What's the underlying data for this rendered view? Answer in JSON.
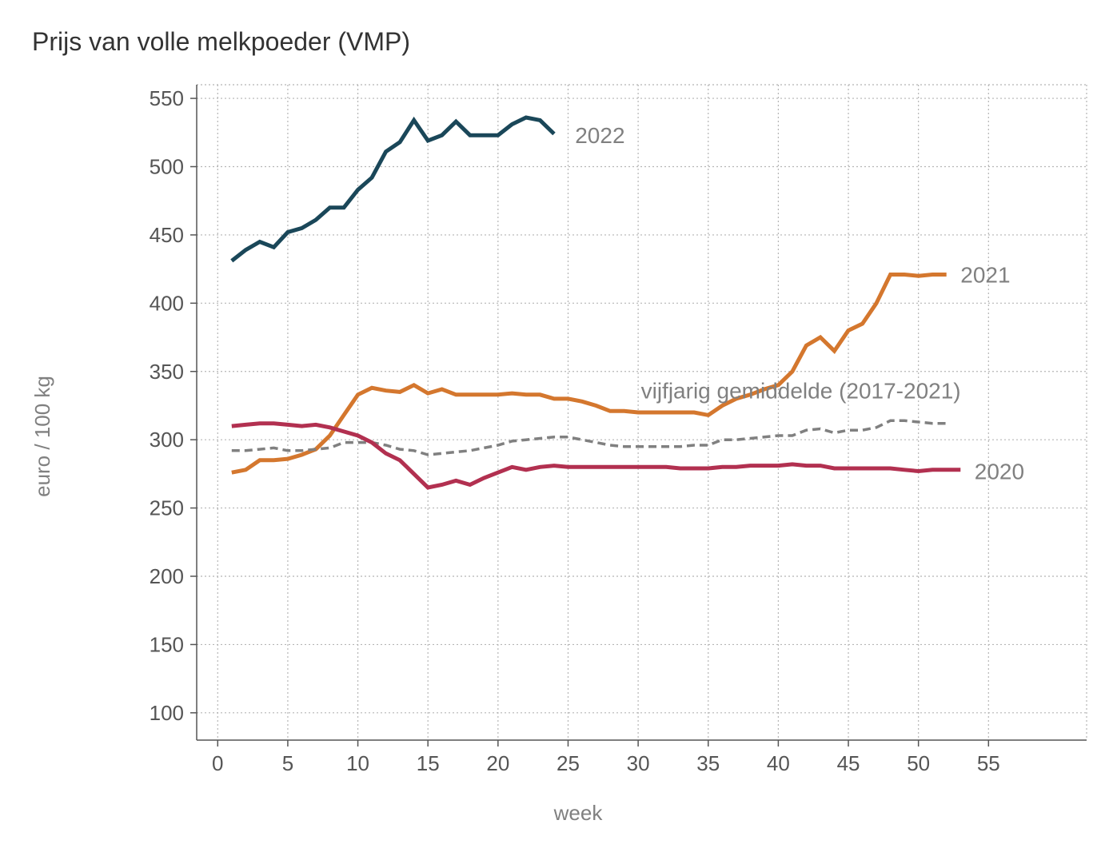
{
  "chart_data": {
    "type": "line",
    "title": "Prijs van volle melkpoeder (VMP)",
    "xlabel": "week",
    "ylabel": "euro / 100 kg",
    "xlim": [
      -1.5,
      62
    ],
    "ylim": [
      80,
      560
    ],
    "xticks": [
      0,
      5,
      10,
      15,
      20,
      25,
      30,
      35,
      40,
      45,
      50,
      55
    ],
    "yticks": [
      100,
      150,
      200,
      250,
      300,
      350,
      400,
      450,
      500,
      550
    ],
    "grid": true,
    "legend": "none",
    "series": [
      {
        "name": "2022",
        "color": "#1a4759",
        "dash": "solid",
        "label_at": [
          25.5,
          523
        ],
        "x": [
          1,
          2,
          3,
          4,
          5,
          6,
          7,
          8,
          9,
          10,
          11,
          12,
          13,
          14,
          15,
          16,
          17,
          18,
          19,
          20,
          21,
          22,
          23,
          24
        ],
        "y": [
          431,
          439,
          445,
          441,
          452,
          455,
          461,
          470,
          470,
          483,
          492,
          511,
          518,
          534,
          519,
          523,
          533,
          523,
          523,
          523,
          531,
          536,
          534,
          524
        ]
      },
      {
        "name": "2021",
        "color": "#d4772e",
        "dash": "solid",
        "label_at": [
          53,
          421
        ],
        "x": [
          1,
          2,
          3,
          4,
          5,
          6,
          7,
          8,
          9,
          10,
          11,
          12,
          13,
          14,
          15,
          16,
          17,
          18,
          19,
          20,
          21,
          22,
          23,
          24,
          25,
          26,
          27,
          28,
          29,
          30,
          31,
          32,
          33,
          34,
          35,
          36,
          37,
          38,
          39,
          40,
          41,
          42,
          43,
          44,
          45,
          46,
          47,
          48,
          49,
          50,
          51,
          52
        ],
        "y": [
          276,
          278,
          285,
          285,
          286,
          289,
          293,
          303,
          318,
          333,
          338,
          336,
          335,
          340,
          334,
          337,
          333,
          333,
          333,
          333,
          334,
          333,
          333,
          330,
          330,
          328,
          325,
          321,
          321,
          320,
          320,
          320,
          320,
          320,
          318,
          325,
          330,
          333,
          337,
          340,
          350,
          369,
          375,
          365,
          380,
          385,
          400,
          421,
          421,
          420,
          421,
          421
        ]
      },
      {
        "name": "vijfjarig gemiddelde (2017-2021)",
        "color": "#808080",
        "dash": "dashed",
        "label_at": [
          30.2,
          336
        ],
        "x": [
          1,
          2,
          3,
          4,
          5,
          6,
          7,
          8,
          9,
          10,
          11,
          12,
          13,
          14,
          15,
          16,
          17,
          18,
          19,
          20,
          21,
          22,
          23,
          24,
          25,
          26,
          27,
          28,
          29,
          30,
          31,
          32,
          33,
          34,
          35,
          36,
          37,
          38,
          39,
          40,
          41,
          42,
          43,
          44,
          45,
          46,
          47,
          48,
          49,
          50,
          51,
          52
        ],
        "y": [
          292,
          292,
          293,
          294,
          292,
          292,
          293,
          294,
          298,
          298,
          298,
          296,
          293,
          292,
          289,
          290,
          291,
          292,
          294,
          296,
          299,
          300,
          301,
          302,
          302,
          300,
          298,
          296,
          295,
          295,
          295,
          295,
          295,
          296,
          296,
          300,
          300,
          301,
          302,
          303,
          303,
          307,
          308,
          305,
          307,
          307,
          309,
          314,
          314,
          313,
          312,
          312
        ]
      },
      {
        "name": "2020",
        "color": "#b23050",
        "dash": "solid",
        "label_at": [
          54,
          277
        ],
        "x": [
          1,
          2,
          3,
          4,
          5,
          6,
          7,
          8,
          9,
          10,
          11,
          12,
          13,
          14,
          15,
          16,
          17,
          18,
          19,
          20,
          21,
          22,
          23,
          24,
          25,
          26,
          27,
          28,
          29,
          30,
          31,
          32,
          33,
          34,
          35,
          36,
          37,
          38,
          39,
          40,
          41,
          42,
          43,
          44,
          45,
          46,
          47,
          48,
          49,
          50,
          51,
          52,
          53
        ],
        "y": [
          310,
          311,
          312,
          312,
          311,
          310,
          311,
          309,
          306,
          303,
          298,
          290,
          285,
          275,
          265,
          267,
          270,
          267,
          272,
          276,
          280,
          278,
          280,
          281,
          280,
          280,
          280,
          280,
          280,
          280,
          280,
          280,
          279,
          279,
          279,
          280,
          280,
          281,
          281,
          281,
          282,
          281,
          281,
          279,
          279,
          279,
          279,
          279,
          278,
          277,
          278,
          278,
          278
        ]
      }
    ]
  }
}
